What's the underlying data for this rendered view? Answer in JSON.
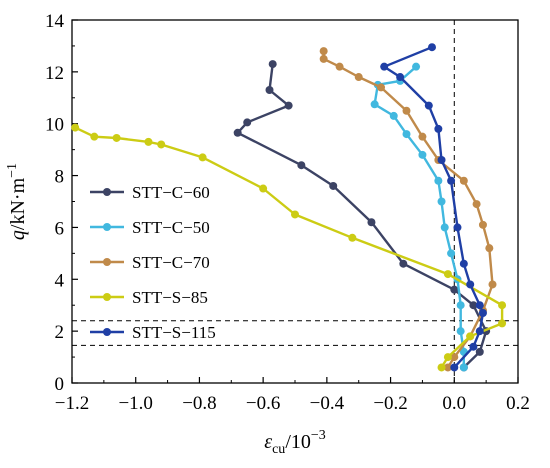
{
  "chart_data": {
    "type": "line",
    "xlabel": {
      "symbol": "ε",
      "sub": "cu",
      "unit": "/10",
      "sup": "−3"
    },
    "ylabel": {
      "symbol": "q",
      "unit": "/kN·m",
      "sup": "−1"
    },
    "xlim": [
      -1.2,
      0.2
    ],
    "ylim": [
      0,
      14
    ],
    "x_ticks": [
      -1.2,
      -1.0,
      -0.8,
      -0.6,
      -0.4,
      -0.2,
      0.0,
      0.2
    ],
    "x_tick_labels": [
      "−1.2",
      "−1.0",
      "−0.8",
      "−0.6",
      "−0.4",
      "−0.2",
      "0.0",
      "0.2"
    ],
    "y_ticks": [
      0,
      2,
      4,
      6,
      8,
      10,
      12,
      14
    ],
    "y_tick_labels": [
      "0",
      "2",
      "4",
      "6",
      "8",
      "10",
      "12",
      "14"
    ],
    "reference_lines": {
      "vertical_x": [
        0.0
      ],
      "horizontal_y": [
        2.4,
        1.45
      ],
      "style": "dashed"
    },
    "legend": {
      "position": "center-left"
    },
    "series": [
      {
        "name": "STT−C−60",
        "color": "#3c4364",
        "points": [
          [
            0.03,
            0.6
          ],
          [
            0.08,
            1.2
          ],
          [
            0.1,
            2.0
          ],
          [
            0.06,
            3.0
          ],
          [
            0.0,
            3.6
          ],
          [
            -0.16,
            4.6
          ],
          [
            -0.26,
            6.2
          ],
          [
            -0.38,
            7.6
          ],
          [
            -0.48,
            8.4
          ],
          [
            -0.68,
            9.65
          ],
          [
            -0.65,
            10.05
          ],
          [
            -0.52,
            10.7
          ],
          [
            -0.58,
            11.3
          ],
          [
            -0.57,
            12.3
          ]
        ]
      },
      {
        "name": "STT−C−50",
        "color": "#41b8df",
        "points": [
          [
            0.03,
            0.6
          ],
          [
            0.03,
            1.2
          ],
          [
            0.02,
            2.0
          ],
          [
            0.02,
            3.0
          ],
          [
            0.01,
            4.0
          ],
          [
            -0.01,
            5.0
          ],
          [
            -0.03,
            6.0
          ],
          [
            -0.04,
            7.0
          ],
          [
            -0.05,
            7.8
          ],
          [
            -0.1,
            8.8
          ],
          [
            -0.15,
            9.6
          ],
          [
            -0.19,
            10.3
          ],
          [
            -0.25,
            10.75
          ],
          [
            -0.24,
            11.5
          ],
          [
            -0.17,
            11.65
          ],
          [
            -0.12,
            12.2
          ]
        ]
      },
      {
        "name": "STT−C−70",
        "color": "#c08a4a",
        "points": [
          [
            -0.02,
            0.6
          ],
          [
            0.0,
            1.0
          ],
          [
            0.05,
            1.8
          ],
          [
            0.09,
            2.8
          ],
          [
            0.12,
            3.8
          ],
          [
            0.11,
            5.2
          ],
          [
            0.09,
            6.1
          ],
          [
            0.07,
            6.9
          ],
          [
            0.03,
            7.8
          ],
          [
            -0.05,
            8.6
          ],
          [
            -0.1,
            9.5
          ],
          [
            -0.15,
            10.5
          ],
          [
            -0.23,
            11.4
          ],
          [
            -0.3,
            11.8
          ],
          [
            -0.36,
            12.2
          ],
          [
            -0.41,
            12.5
          ],
          [
            -0.41,
            12.8
          ]
        ]
      },
      {
        "name": "STT−S−85",
        "color": "#cccc14",
        "points": [
          [
            -0.04,
            0.6
          ],
          [
            -0.02,
            1.0
          ],
          [
            0.05,
            1.8
          ],
          [
            0.15,
            2.3
          ],
          [
            0.15,
            3.0
          ],
          [
            -0.02,
            4.2
          ],
          [
            -0.32,
            5.6
          ],
          [
            -0.5,
            6.5
          ],
          [
            -0.6,
            7.5
          ],
          [
            -0.79,
            8.7
          ],
          [
            -0.92,
            9.2
          ],
          [
            -0.96,
            9.3
          ],
          [
            -1.06,
            9.45
          ],
          [
            -1.13,
            9.5
          ],
          [
            -1.19,
            9.85
          ]
        ]
      },
      {
        "name": "STT−S−115",
        "color": "#1f3fa5",
        "points": [
          [
            0.0,
            0.6
          ],
          [
            0.06,
            1.4
          ],
          [
            0.08,
            2.0
          ],
          [
            0.09,
            2.7
          ],
          [
            0.08,
            3.0
          ],
          [
            0.05,
            3.8
          ],
          [
            0.03,
            4.6
          ],
          [
            0.01,
            6.0
          ],
          [
            -0.01,
            7.8
          ],
          [
            -0.04,
            8.6
          ],
          [
            -0.05,
            9.8
          ],
          [
            -0.08,
            10.7
          ],
          [
            -0.17,
            11.8
          ],
          [
            -0.22,
            12.2
          ],
          [
            -0.07,
            12.95
          ]
        ]
      }
    ]
  }
}
